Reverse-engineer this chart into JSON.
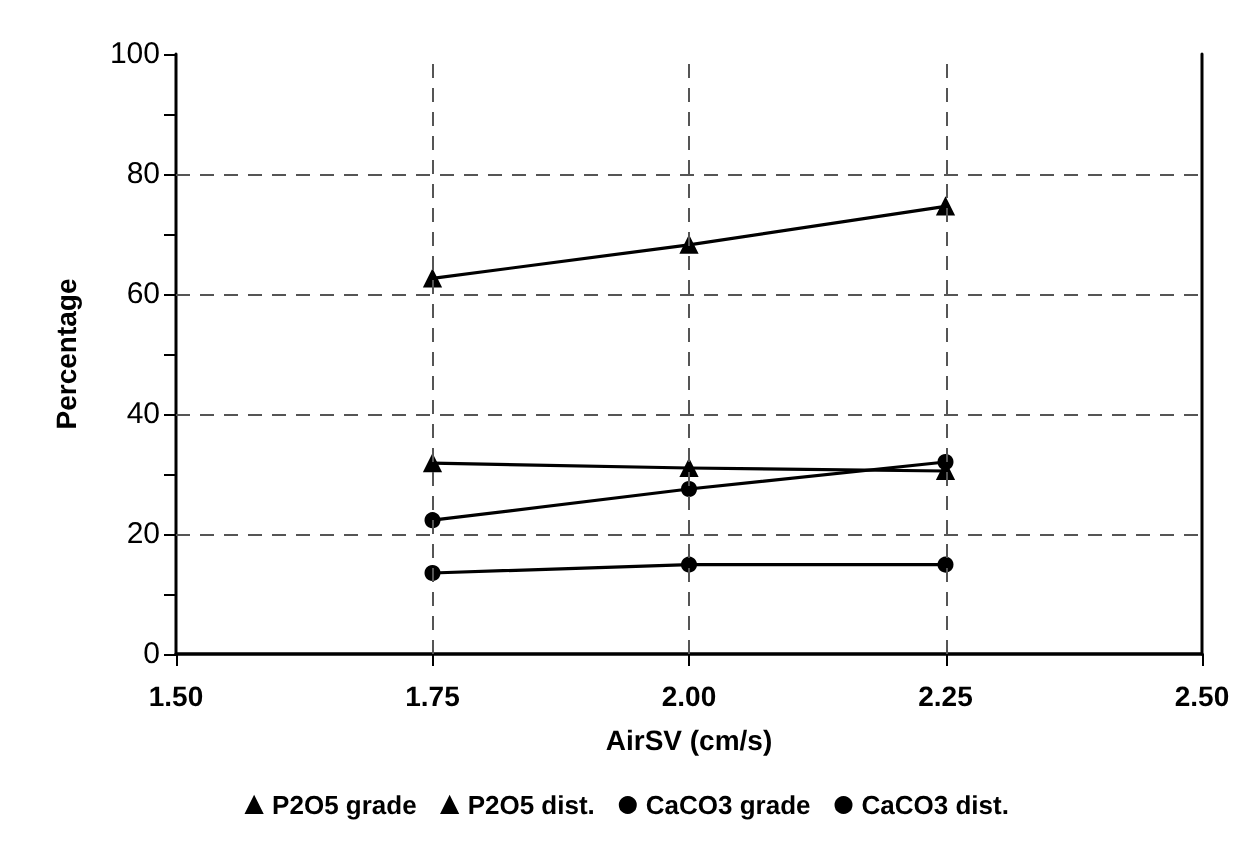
{
  "chart_data": {
    "type": "line",
    "xlabel": "AirSV (cm/s)",
    "ylabel": "Percentage",
    "x": [
      1.75,
      2.0,
      2.25
    ],
    "series": [
      {
        "name": "P2O5 grade",
        "color": "#000000",
        "marker": "triangle",
        "values": [
          31.8,
          31.0,
          30.5
        ]
      },
      {
        "name": "P2O5 dist.",
        "color": "#000000",
        "marker": "triangle",
        "values": [
          62.6,
          68.2,
          74.6
        ]
      },
      {
        "name": "CaCO3 grade",
        "color": "#000000",
        "marker": "circle",
        "values": [
          13.5,
          14.9,
          14.9
        ]
      },
      {
        "name": "CaCO3 dist.",
        "color": "#000000",
        "marker": "circle",
        "values": [
          22.3,
          27.5,
          32.0
        ]
      }
    ],
    "xlim": [
      1.5,
      2.5
    ],
    "xticks": [
      {
        "value": 1.5,
        "label": "1.50"
      },
      {
        "value": 1.75,
        "label": "1.75"
      },
      {
        "value": 2.0,
        "label": "2.00"
      },
      {
        "value": 2.25,
        "label": "2.25"
      },
      {
        "value": 2.5,
        "label": "2.50"
      }
    ],
    "ylim": [
      0,
      100
    ],
    "yticks": [
      0,
      {
        "value": 10,
        "label": null
      },
      20,
      {
        "value": 30,
        "label": null
      },
      40,
      {
        "value": 50,
        "label": null
      },
      60,
      {
        "value": 70,
        "label": null
      },
      80,
      {
        "value": 90,
        "label": null
      },
      100
    ],
    "grid": true,
    "legend": "bottom",
    "line_style": "solid"
  }
}
